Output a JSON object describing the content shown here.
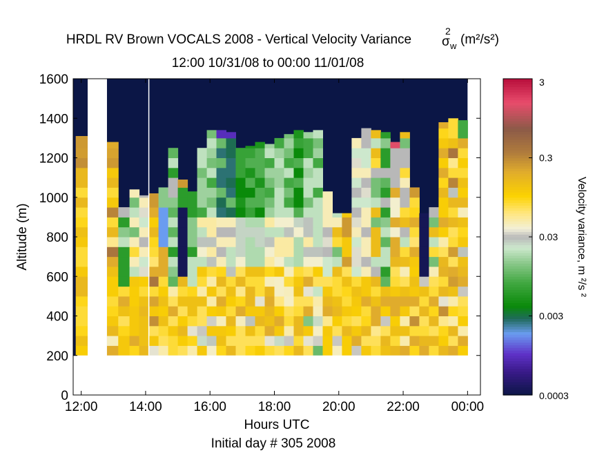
{
  "chart_data": {
    "type": "heatmap",
    "title": "HRDL RV Brown VOCALS 2008 - Vertical Velocity Variance",
    "title_symbol": "σ",
    "title_sup": "2",
    "title_sub": "w",
    "title_units": "(m²/s²)",
    "subtitle": "12:00 10/31/08 to 00:00 11/01/08",
    "xlabel": "Hours UTC",
    "xlabel2": "Initial day # 305  2008",
    "ylabel": "Altitude (m)",
    "colorbar_label": "Velocity variance, m ²/s ²",
    "xlim": [
      11.75,
      24.4
    ],
    "ylim": [
      0,
      1600
    ],
    "x_ticks": [
      {
        "v": 12,
        "label": "12:00"
      },
      {
        "v": 14,
        "label": "14:00"
      },
      {
        "v": 16,
        "label": "16:00"
      },
      {
        "v": 18,
        "label": "18:00"
      },
      {
        "v": 20,
        "label": "20:00"
      },
      {
        "v": 22,
        "label": "22:00"
      },
      {
        "v": 24,
        "label": "00:00"
      }
    ],
    "y_ticks": [
      {
        "v": 0,
        "label": "0"
      },
      {
        "v": 200,
        "label": "200"
      },
      {
        "v": 400,
        "label": "400"
      },
      {
        "v": 600,
        "label": "600"
      },
      {
        "v": 800,
        "label": "800"
      },
      {
        "v": 1000,
        "label": "1000"
      },
      {
        "v": 1200,
        "label": "1200"
      },
      {
        "v": 1400,
        "label": "1400"
      },
      {
        "v": 1600,
        "label": "1600"
      }
    ],
    "colorbar_scale": "log",
    "colorbar_range": [
      0.0003,
      3
    ],
    "colorbar_ticks": [
      {
        "v": 0.0003,
        "label": "0.0003"
      },
      {
        "v": 0.003,
        "label": "0.003"
      },
      {
        "v": 0.03,
        "label": "0.03"
      },
      {
        "v": 0.3,
        "label": "0.3"
      },
      {
        "v": 3,
        "label": "3"
      }
    ],
    "colormap": [
      {
        "v": 0.0003,
        "c": "#0b1646"
      },
      {
        "v": 0.0006,
        "c": "#3a1a8a"
      },
      {
        "v": 0.001,
        "c": "#5f32c8"
      },
      {
        "v": 0.0018,
        "c": "#6a9cf0"
      },
      {
        "v": 0.0028,
        "c": "#1f6a5a"
      },
      {
        "v": 0.004,
        "c": "#0a8a0a"
      },
      {
        "v": 0.008,
        "c": "#42a842"
      },
      {
        "v": 0.014,
        "c": "#8ac88a"
      },
      {
        "v": 0.022,
        "c": "#cde8cd"
      },
      {
        "v": 0.03,
        "c": "#b8b8b8"
      },
      {
        "v": 0.038,
        "c": "#f2f0d8"
      },
      {
        "v": 0.06,
        "c": "#ffe680"
      },
      {
        "v": 0.1,
        "c": "#fcd200"
      },
      {
        "v": 0.2,
        "c": "#e0ac2c"
      },
      {
        "v": 0.35,
        "c": "#b07c3c"
      },
      {
        "v": 0.7,
        "c": "#8c5a48"
      },
      {
        "v": 1.5,
        "c": "#e84c6c"
      },
      {
        "v": 3,
        "c": "#b80f3c"
      }
    ],
    "alt_bins_bottom": 200,
    "alt_bin_size": 50,
    "mask_below": 200,
    "gaps": [
      [
        12.2,
        12.8
      ]
    ],
    "vertical_lines": [
      14.1
    ],
    "columns": [
      {
        "x0": 11.83,
        "x1": 12.2,
        "top": 1310,
        "pattern": "orange"
      },
      {
        "x0": 12.8,
        "x1": 13.15,
        "top": 1280,
        "pattern": "orange"
      },
      {
        "x0": 13.15,
        "x1": 13.5,
        "top": 950,
        "pattern": "green-low"
      },
      {
        "x0": 13.5,
        "x1": 13.8,
        "top": 1040,
        "pattern": "mixed"
      },
      {
        "x0": 13.8,
        "x1": 14.1,
        "top": 1010,
        "pattern": "gray-mid"
      },
      {
        "x0": 14.1,
        "x1": 14.4,
        "top": 1020,
        "pattern": "orange"
      },
      {
        "x0": 14.4,
        "x1": 14.7,
        "top": 1050,
        "pattern": "blue-mid"
      },
      {
        "x0": 14.7,
        "x1": 15.0,
        "top": 1250,
        "pattern": "green-low"
      },
      {
        "x0": 15.0,
        "x1": 15.3,
        "top": 1090,
        "pattern": "navy-mid"
      },
      {
        "x0": 15.3,
        "x1": 15.6,
        "top": 1030,
        "pattern": "green-low"
      },
      {
        "x0": 15.6,
        "x1": 15.9,
        "top": 1250,
        "pattern": "green-high"
      },
      {
        "x0": 15.9,
        "x1": 16.2,
        "top": 1340,
        "pattern": "green-high"
      },
      {
        "x0": 16.2,
        "x1": 16.5,
        "top": 1340,
        "pattern": "teal-high"
      },
      {
        "x0": 16.5,
        "x1": 16.8,
        "top": 1330,
        "pattern": "teal-high"
      },
      {
        "x0": 16.8,
        "x1": 17.1,
        "top": 1250,
        "pattern": "green-dark"
      },
      {
        "x0": 17.1,
        "x1": 17.4,
        "top": 1260,
        "pattern": "green-dark"
      },
      {
        "x0": 17.4,
        "x1": 17.7,
        "top": 1280,
        "pattern": "green-dark"
      },
      {
        "x0": 17.7,
        "x1": 18.0,
        "top": 1270,
        "pattern": "green-high"
      },
      {
        "x0": 18.0,
        "x1": 18.3,
        "top": 1300,
        "pattern": "green-high"
      },
      {
        "x0": 18.3,
        "x1": 18.6,
        "top": 1320,
        "pattern": "green-high"
      },
      {
        "x0": 18.6,
        "x1": 18.9,
        "top": 1340,
        "pattern": "green-dark"
      },
      {
        "x0": 18.9,
        "x1": 19.2,
        "top": 1330,
        "pattern": "green-high"
      },
      {
        "x0": 19.2,
        "x1": 19.5,
        "top": 1340,
        "pattern": "green-high"
      },
      {
        "x0": 19.5,
        "x1": 19.8,
        "top": 1030,
        "pattern": "gray-mid"
      },
      {
        "x0": 19.8,
        "x1": 20.1,
        "top": 920,
        "pattern": "mixed"
      },
      {
        "x0": 20.1,
        "x1": 20.4,
        "top": 920,
        "pattern": "orange"
      },
      {
        "x0": 20.4,
        "x1": 20.7,
        "top": 1300,
        "pattern": "gray-mid"
      },
      {
        "x0": 20.7,
        "x1": 21.0,
        "top": 1350,
        "pattern": "gray-mid"
      },
      {
        "x0": 21.0,
        "x1": 21.3,
        "top": 1340,
        "pattern": "mixed"
      },
      {
        "x0": 21.3,
        "x1": 21.6,
        "top": 1330,
        "pattern": "green-low"
      },
      {
        "x0": 21.6,
        "x1": 21.9,
        "top": 1280,
        "pattern": "pink-top"
      },
      {
        "x0": 21.9,
        "x1": 22.2,
        "top": 1330,
        "pattern": "mixed"
      },
      {
        "x0": 22.2,
        "x1": 22.5,
        "top": 1050,
        "pattern": "orange"
      },
      {
        "x0": 22.5,
        "x1": 22.8,
        "top": 920,
        "pattern": "navy-mid"
      },
      {
        "x0": 22.8,
        "x1": 23.1,
        "top": 950,
        "pattern": "mixed"
      },
      {
        "x0": 23.1,
        "x1": 23.4,
        "top": 1380,
        "pattern": "orange"
      },
      {
        "x0": 23.4,
        "x1": 23.7,
        "top": 1400,
        "pattern": "orange"
      },
      {
        "x0": 23.7,
        "x1": 24.0,
        "top": 1390,
        "pattern": "orange-green"
      }
    ]
  }
}
